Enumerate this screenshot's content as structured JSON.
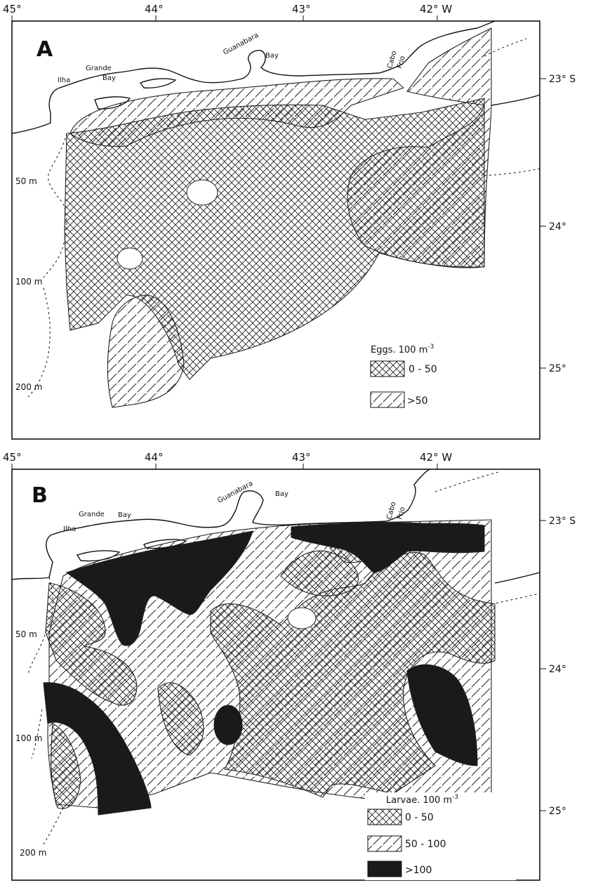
{
  "colors": {
    "ink": "#111111",
    "paper": "#ffffff",
    "dark_zone": "#1a1a1a"
  },
  "panel_a": {
    "panel_label": "A",
    "lon_ticks": [
      "45°",
      "44°",
      "43°",
      "42° W"
    ],
    "lat_ticks": [
      "23° S",
      "24°",
      "25°"
    ],
    "place_labels": {
      "ilha": "Ilha",
      "grande": "Grande",
      "bay_w": "Bay",
      "guanabara": "Guanabara",
      "bay_e": "Bay",
      "cabo": "Cabo",
      "frio": "Frio"
    },
    "isobaths": [
      "50 m",
      "100 m",
      "200 m"
    ],
    "legend": {
      "title": "Eggs. 100 m",
      "title_sup": "-3",
      "items": [
        {
          "pattern": "crosshatch",
          "label": "0 - 50"
        },
        {
          "pattern": "hatch",
          "label": ">50"
        }
      ]
    }
  },
  "panel_b": {
    "panel_label": "B",
    "lon_ticks": [
      "45°",
      "44°",
      "43°",
      "42° W"
    ],
    "lat_ticks": [
      "23° S",
      "24°",
      "25°"
    ],
    "place_labels": {
      "ilha": "Ilha",
      "grande": "Grande",
      "bay_w": "Bay",
      "guanabara": "Guanabara",
      "bay_e": "Bay",
      "cabo": "Cabo",
      "frio": "Frio"
    },
    "isobaths": [
      "50 m",
      "100 m",
      "200 m"
    ],
    "legend": {
      "title": "Larvae. 100 m",
      "title_sup": "-3",
      "items": [
        {
          "pattern": "crosshatch",
          "label": "0 - 50"
        },
        {
          "pattern": "hatch",
          "label": "50 - 100"
        },
        {
          "pattern": "solid",
          "label": ">100"
        }
      ]
    }
  }
}
